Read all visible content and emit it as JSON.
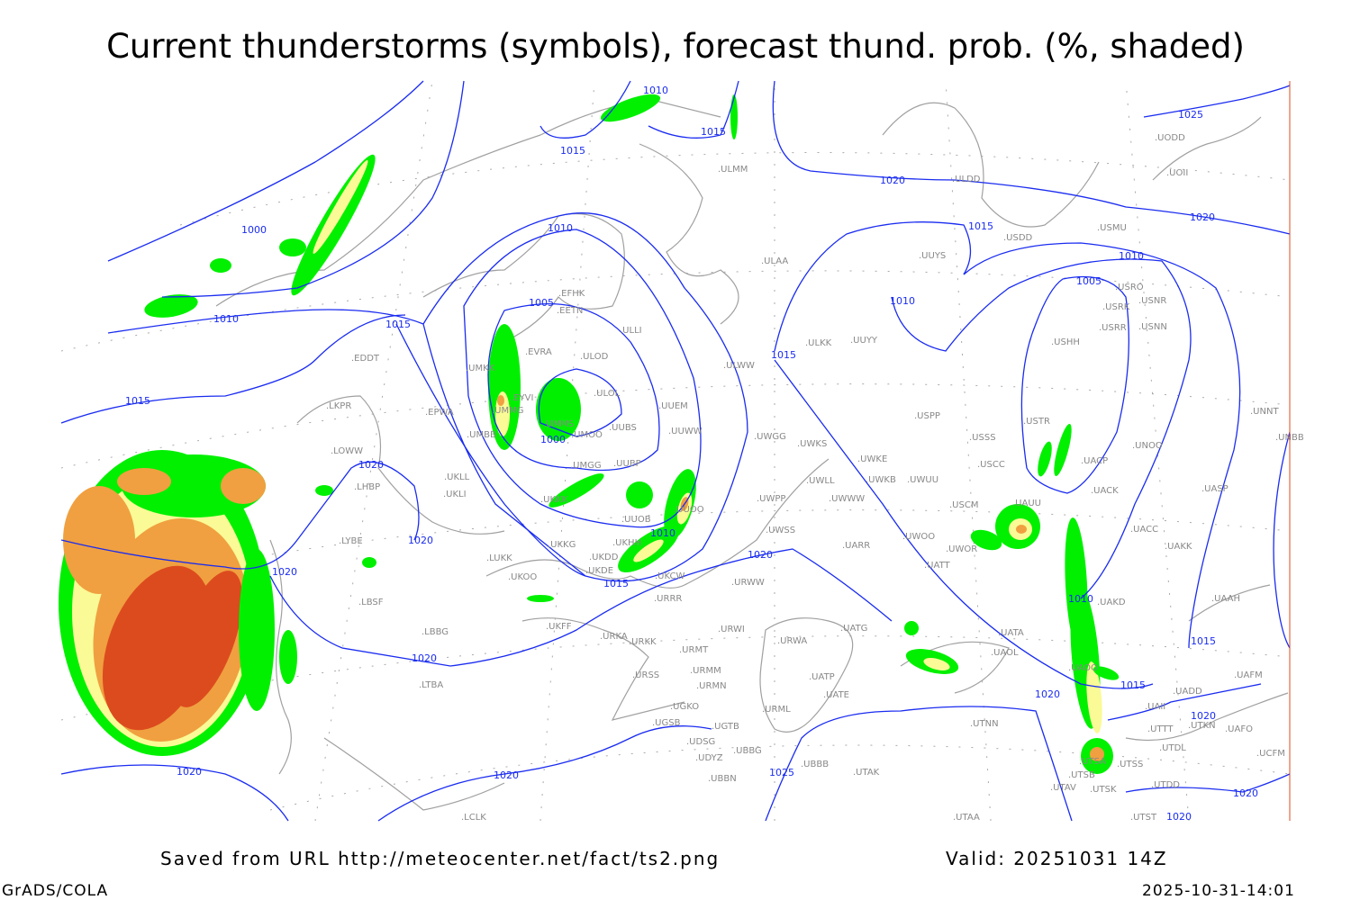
{
  "title": "Current thunderstorms (symbols), forecast thund. prob. (%, shaded)",
  "footer": {
    "source": "Saved from URL http://meteocenter.net/fact/ts2.png",
    "valid": "Valid: 20251031 14Z",
    "software": "GrADS/COLA",
    "timestamp": "2025-10-31-14:01"
  },
  "colors": {
    "isobar": "#1a2cf0",
    "coastline": "#a0a0a0",
    "prob_low": "#00f000",
    "prob_mid": "#fafa96",
    "prob_high": "#f0a040",
    "prob_top": "#dc4b1e"
  },
  "isobar_labels": [
    "1010",
    "1015",
    "1015",
    "1000",
    "1010",
    "1015",
    "1015",
    "1010",
    "1005",
    "1000",
    "1010",
    "1015",
    "1020",
    "1020",
    "1020",
    "1020",
    "1020",
    "1020",
    "1020",
    "1025",
    "1015",
    "1020",
    "1015",
    "1010",
    "1010",
    "1005",
    "1020",
    "1025",
    "1010",
    "1015",
    "1015",
    "1020",
    "1020",
    "1020",
    "1020"
  ],
  "stations": [
    "EDDT",
    "EPWA",
    "LKPR",
    "LOWW",
    "LHBP",
    "LYBE",
    "LBSF",
    "LBBG",
    "LTBA",
    "UKLL",
    "UKLI",
    "UMBB",
    "UMKK",
    "EVRA",
    "EYVI",
    "UMMG",
    "UMMS",
    "UMOO",
    "ULOD",
    "ULOL",
    "UUBS",
    "UUBP",
    "UMGG",
    "EFHK",
    "EETN",
    "ULLI",
    "UUEM",
    "UUWW",
    "ULWW",
    "UUOB",
    "UUOO",
    "UKKK",
    "UKHH",
    "UKKG",
    "UKDD",
    "UKDE",
    "UKOO",
    "LUKK",
    "UKCW",
    "URRR",
    "UKFF",
    "URKA",
    "URKK",
    "URMT",
    "URWI",
    "URMM",
    "URMN",
    "URSS",
    "UGKO",
    "UGSB",
    "UGTB",
    "UDSG",
    "UBBG",
    "UDYZ",
    "UBBN",
    "URWW",
    "URWA",
    "URML",
    "UATG",
    "UATP",
    "UATE",
    "UBBB",
    "UTAK",
    "UWSS",
    "UWPP",
    "UWGG",
    "UWKS",
    "UWLL",
    "UWWW",
    "UWKE",
    "UWKB",
    "UWUU",
    "UWOO",
    "UWOR",
    "UATT",
    "UARR",
    "UUYY",
    "ULKK",
    "ULAA",
    "ULMM",
    "ULDD",
    "UUYS",
    "USDD",
    "USMU",
    "USRO",
    "USRK",
    "USNR",
    "USRR",
    "USNN",
    "USHH",
    "USPP",
    "USSS",
    "USCC",
    "USCM",
    "USTR",
    "UAUU",
    "UNOO",
    "UACP",
    "UACK",
    "UASP",
    "UACC",
    "UAKK",
    "UAKD",
    "UAAH",
    "UNNT",
    "UNBB",
    "UODD",
    "UOII",
    "UAOL",
    "UATA",
    "UAOO",
    "UADD",
    "UAII",
    "UAFM",
    "UTKN",
    "UAFO",
    "UTTT",
    "UTDL",
    "UTSA",
    "UTSS",
    "UTSB",
    "UTAV",
    "UTSK",
    "UTDD",
    "UTST",
    "UTNN",
    "UTAA",
    "UCFM",
    "LCLK"
  ]
}
